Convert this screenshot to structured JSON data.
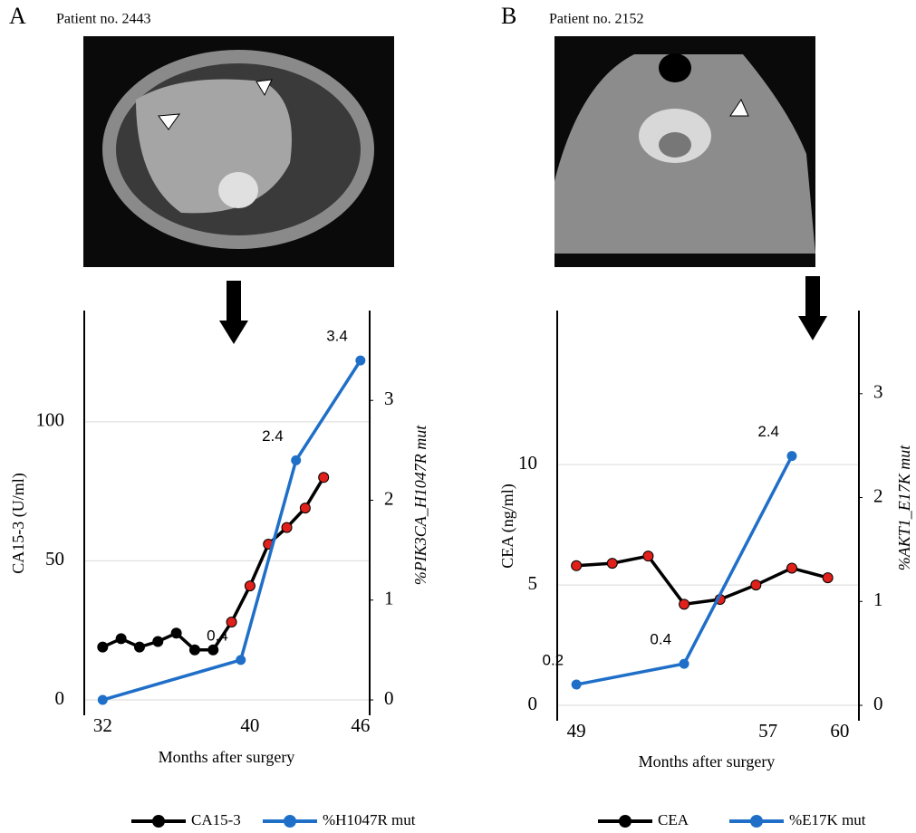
{
  "panels": [
    {
      "label": "A",
      "patient": "Patient no. 2443"
    },
    {
      "label": "B",
      "patient": "Patient no. 2152"
    }
  ],
  "chart_data": [
    {
      "type": "line",
      "xlabel": "Months after surgery",
      "ylabel": "CA15-3 (U/ml)",
      "y2label": "%PIK3CA_H1047R mut",
      "xlim": [
        31,
        46.5
      ],
      "xticks": [
        32,
        40,
        46
      ],
      "ylim": [
        0,
        140
      ],
      "yticks": [
        0,
        50,
        100
      ],
      "y2lim": [
        0,
        3.9
      ],
      "y2ticks": [
        0,
        1,
        2,
        3
      ],
      "grid": true,
      "series": [
        {
          "name": "CA15-3",
          "color": "#000000",
          "x": [
            32,
            33,
            34,
            35,
            36,
            37,
            38,
            39,
            40,
            41,
            42,
            43,
            44
          ],
          "values": [
            19,
            22,
            19,
            21,
            24,
            18,
            18,
            28,
            41,
            56,
            62,
            69,
            80
          ],
          "marker_colors": [
            "#000000",
            "#000000",
            "#000000",
            "#000000",
            "#000000",
            "#000000",
            "#000000",
            "#e0201a",
            "#e0201a",
            "#e0201a",
            "#e0201a",
            "#e0201a",
            "#e0201a"
          ]
        },
        {
          "name": "%H1047R mut",
          "color": "#1f6fc8",
          "axis": "y2",
          "x": [
            32,
            39.5,
            42.5,
            46
          ],
          "values": [
            0,
            0.4,
            2.4,
            3.4
          ],
          "value_labels": [
            null,
            "0.4",
            "2.4",
            "3.4"
          ]
        }
      ]
    },
    {
      "type": "line",
      "xlabel": "Months after surgery",
      "ylabel": "CEA (ng/ml)",
      "y2label": "%AKT1_E17K mut",
      "xlim": [
        48.2,
        60.8
      ],
      "xticks": [
        49,
        57,
        60
      ],
      "ylim": [
        0,
        16.4
      ],
      "yticks": [
        0,
        5,
        10
      ],
      "y2lim": [
        0,
        3.8
      ],
      "y2ticks": [
        0,
        1,
        2,
        3
      ],
      "grid": true,
      "series": [
        {
          "name": "CEA",
          "color": "#000000",
          "x": [
            49,
            50.5,
            52,
            53.5,
            55,
            56.5,
            58,
            59.5
          ],
          "values": [
            5.8,
            5.9,
            6.2,
            4.2,
            4.4,
            5.0,
            5.7,
            5.3
          ],
          "marker_colors": [
            "#e0201a",
            "#e0201a",
            "#e0201a",
            "#e0201a",
            "#e0201a",
            "#e0201a",
            "#e0201a",
            "#e0201a"
          ]
        },
        {
          "name": "%E17K mut",
          "color": "#1f6fc8",
          "axis": "y2",
          "x": [
            49,
            53.5,
            58
          ],
          "values": [
            0.2,
            0.4,
            2.4
          ],
          "value_labels": [
            "0.2",
            "0.4",
            "2.4"
          ]
        }
      ]
    }
  ]
}
